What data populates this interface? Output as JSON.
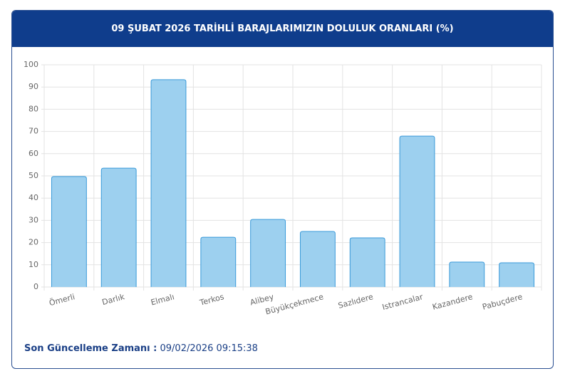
{
  "chart_data": {
    "type": "bar",
    "title": "09 ŞUBAT 2026 TARİHLİ BARAJLARIMIZIN DOLULUK ORANLARI (%)",
    "categories": [
      "Ömerli",
      "Darlık",
      "Elmalı",
      "Terkos",
      "Alibey",
      "Büyükçekmece",
      "Sazlıdere",
      "Istrancalar",
      "Kazandere",
      "Pabuçdere"
    ],
    "values": [
      49.7,
      53.5,
      93.3,
      22.4,
      30.4,
      25.0,
      22.1,
      67.9,
      11.2,
      10.9
    ],
    "color": "#9dd0ef",
    "border_color": "#3a9ad9",
    "ylim": [
      0,
      100
    ],
    "yticks": [
      0,
      10,
      20,
      30,
      40,
      50,
      60,
      70,
      80,
      90,
      100
    ],
    "grid": true
  },
  "footer": {
    "label": "Son Güncelleme Zamanı :",
    "value": "09/02/2026 09:15:38"
  }
}
